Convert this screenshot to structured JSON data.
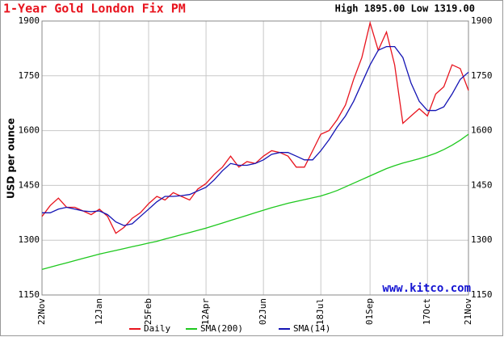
{
  "chart_data": {
    "type": "line",
    "title": "1-Year Gold London Fix PM",
    "annotation": "High 1895.00 Low 1319.00",
    "watermark": "www.kitco.com",
    "y_label": "USD per ounce",
    "categories": [
      "22Nov",
      null,
      null,
      null,
      null,
      null,
      null,
      "12Jan",
      null,
      null,
      null,
      null,
      null,
      "25Feb",
      null,
      null,
      null,
      null,
      null,
      null,
      "12Apr",
      null,
      null,
      null,
      null,
      null,
      null,
      "02Jun",
      null,
      null,
      null,
      null,
      null,
      null,
      "18Jul",
      null,
      null,
      null,
      null,
      null,
      "01Sep",
      null,
      null,
      null,
      null,
      null,
      null,
      "17Oct",
      null,
      null,
      null,
      null,
      "21Nov"
    ],
    "series": [
      {
        "name": "Daily",
        "color": "#e8141e",
        "values": [
          1365,
          1395,
          1415,
          1390,
          1390,
          1380,
          1370,
          1385,
          1365,
          1319,
          1335,
          1360,
          1375,
          1400,
          1420,
          1410,
          1430,
          1420,
          1410,
          1440,
          1455,
          1480,
          1500,
          1530,
          1500,
          1515,
          1510,
          1530,
          1545,
          1540,
          1530,
          1500,
          1500,
          1545,
          1590,
          1600,
          1630,
          1670,
          1740,
          1800,
          1895,
          1820,
          1870,
          1780,
          1620,
          1640,
          1660,
          1640,
          1700,
          1720,
          1780,
          1770,
          1710
        ]
      },
      {
        "name": "SMA(200)",
        "color": "#1ec81e",
        "values": [
          1220,
          1226,
          1232,
          1238,
          1244,
          1250,
          1256,
          1262,
          1267,
          1272,
          1277,
          1282,
          1287,
          1292,
          1297,
          1303,
          1309,
          1315,
          1321,
          1327,
          1333,
          1340,
          1347,
          1354,
          1361,
          1368,
          1375,
          1382,
          1389,
          1395,
          1401,
          1406,
          1411,
          1416,
          1421,
          1428,
          1436,
          1446,
          1456,
          1466,
          1476,
          1486,
          1496,
          1504,
          1511,
          1517,
          1523,
          1530,
          1538,
          1548,
          1560,
          1574,
          1590
        ]
      },
      {
        "name": "SMA(14)",
        "color": "#1414b4",
        "values": [
          1375,
          1375,
          1385,
          1390,
          1385,
          1380,
          1378,
          1380,
          1370,
          1350,
          1340,
          1345,
          1365,
          1385,
          1405,
          1420,
          1420,
          1422,
          1425,
          1435,
          1445,
          1465,
          1490,
          1510,
          1505,
          1505,
          1510,
          1520,
          1535,
          1540,
          1540,
          1530,
          1520,
          1520,
          1545,
          1575,
          1610,
          1640,
          1680,
          1730,
          1780,
          1820,
          1830,
          1830,
          1800,
          1730,
          1680,
          1655,
          1655,
          1665,
          1700,
          1740,
          1760
        ]
      }
    ],
    "ylim": [
      1150,
      1900
    ],
    "yticks": [
      1150,
      1300,
      1450,
      1600,
      1750,
      1900
    ],
    "grid": true
  }
}
